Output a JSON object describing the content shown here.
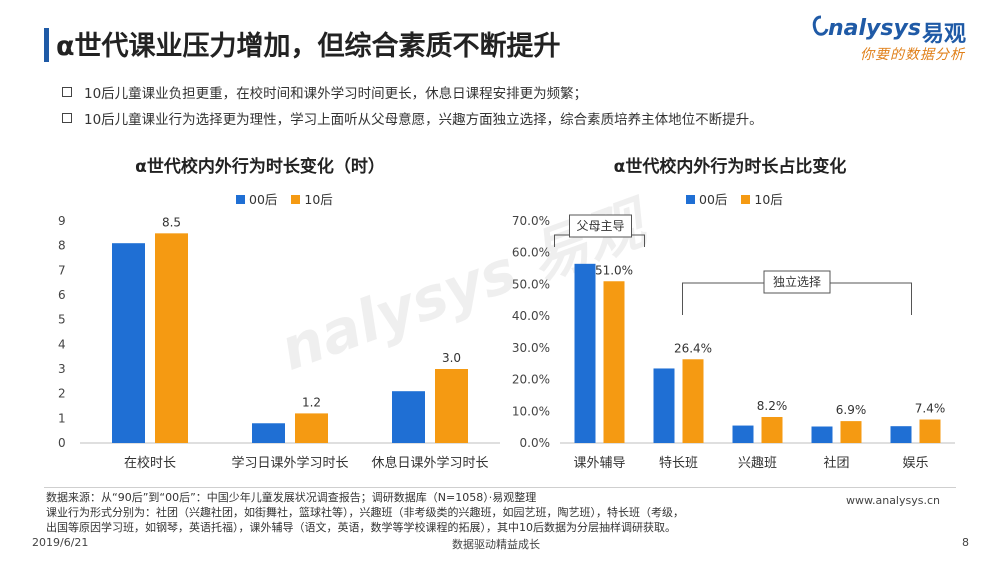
{
  "header": {
    "title": "α世代课业压力增加，但综合素质不断提升",
    "brand_en": "nalysys",
    "brand_zh": "易观",
    "brand_tagline": "你要的数据分析",
    "watermark": "nalysys 易观"
  },
  "bullets": [
    "10后儿童课业负担更重，在校时间和课外学习时间更长，休息日课程安排更为频繁；",
    "10后儿童课业行为选择更为理性，学习上面听从父母意愿，兴趣方面独立选择，综合素质培养主体地位不断提升。"
  ],
  "colors": {
    "series_00": "#1f6fd4",
    "series_10": "#f59a12",
    "title_bar": "#1f5aa6"
  },
  "chart_data": [
    {
      "type": "bar",
      "title": "α世代校内外行为时长变化（时）",
      "categories": [
        "在校时长",
        "学习日课外学习时长",
        "休息日课外学习时长"
      ],
      "series": [
        {
          "name": "00后",
          "values": [
            8.1,
            0.8,
            2.1
          ]
        },
        {
          "name": "10后",
          "values": [
            8.5,
            1.2,
            3.0
          ]
        }
      ],
      "data_labels": [
        "8.5",
        "1.2",
        "3.0"
      ],
      "yticks": [
        "0",
        "1",
        "2",
        "3",
        "4",
        "5",
        "6",
        "7",
        "8",
        "9"
      ],
      "ylim": [
        0,
        9
      ],
      "grid": false,
      "legend": "top-center"
    },
    {
      "type": "bar",
      "title": "α世代校内外行为时长占比变化",
      "categories": [
        "课外辅导",
        "特长班",
        "兴趣班",
        "社团",
        "娱乐"
      ],
      "series": [
        {
          "name": "00后",
          "values": [
            56.5,
            23.5,
            5.5,
            5.2,
            5.3
          ]
        },
        {
          "name": "10后",
          "values": [
            51.0,
            26.4,
            8.2,
            6.9,
            7.4
          ]
        }
      ],
      "data_labels": [
        "51.0%",
        "26.4%",
        "8.2%",
        "6.9%",
        "7.4%"
      ],
      "yticks": [
        "0.0%",
        "10.0%",
        "20.0%",
        "30.0%",
        "40.0%",
        "50.0%",
        "60.0%",
        "70.0%"
      ],
      "ylim": [
        0,
        70
      ],
      "grid": false,
      "legend": "top-center",
      "annotations": [
        "父母主导",
        "独立选择"
      ]
    }
  ],
  "footer": {
    "source_lines": [
      "数据来源：从“90后”到“00后”：中国少年儿童发展状况调查报告；调研数据库（N=1058）·易观整理",
      "课业行为形式分别为：社团（兴趣社团，如街舞社，篮球社等），兴趣班（非考级类的兴趣班，如园艺班，陶艺班），特长班（考级，",
      "出国等原因学习班，如钢琴，英语托福），课外辅导（语文，英语，数学等学校课程的拓展），其中10后数据为分层抽样调研获取。"
    ],
    "website": "www.analysys.cn",
    "date": "2019/6/21",
    "slogan": "数据驱动精益成长",
    "page": "8"
  }
}
